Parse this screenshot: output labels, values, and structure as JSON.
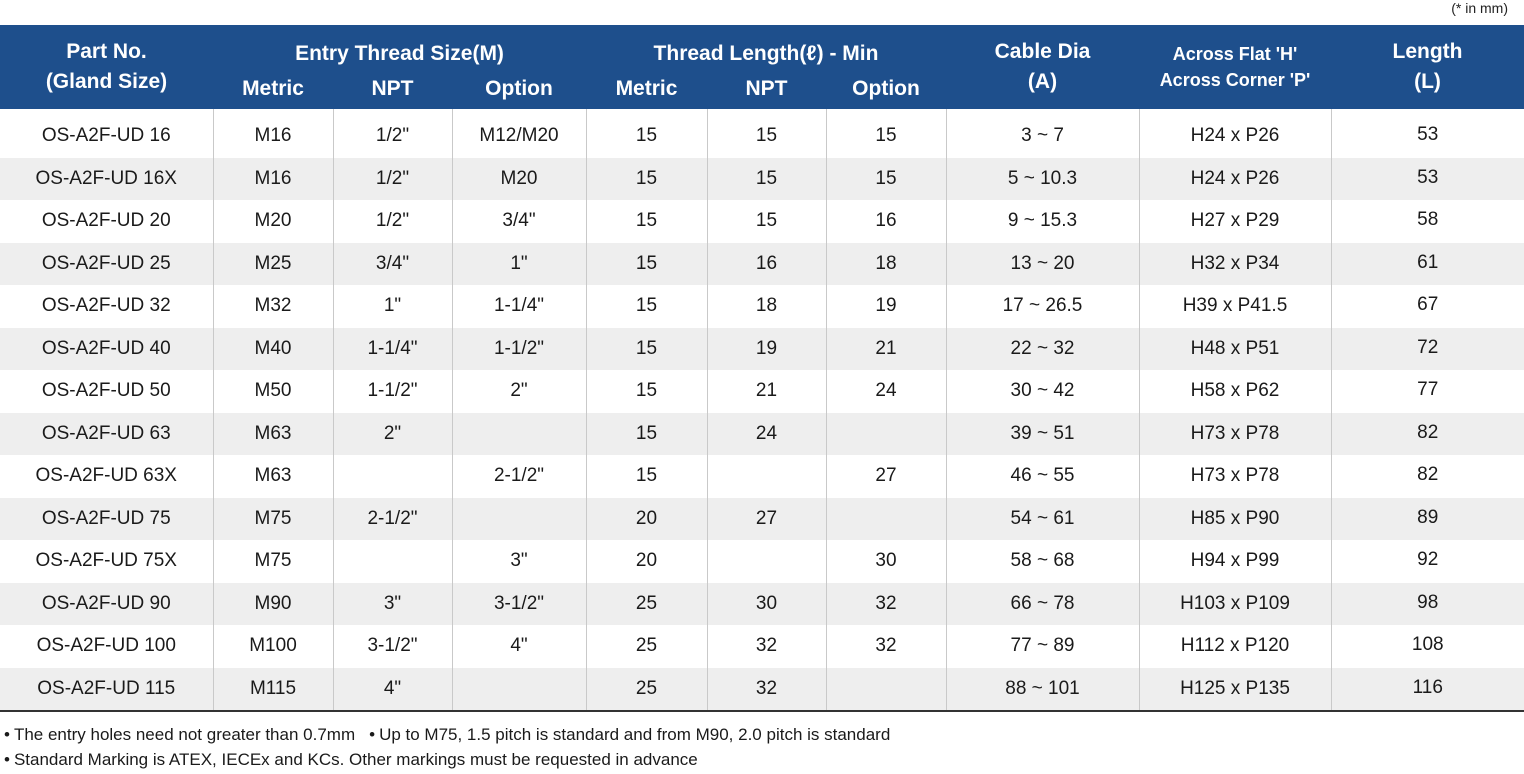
{
  "unit_note": "(* in mm)",
  "headers": {
    "part_no": [
      "Part No.",
      "(Gland Size)"
    ],
    "entry_thread": "Entry Thread Size(M)",
    "thread_length": "Thread Length(ℓ) - Min",
    "cable_dia": [
      "Cable Dia",
      "(A)"
    ],
    "across": [
      "Across Flat 'H'",
      "Across Corner 'P'"
    ],
    "length": [
      "Length",
      "(L)"
    ],
    "sub": [
      "Metric",
      "NPT",
      "Option",
      "Metric",
      "NPT",
      "Option"
    ]
  },
  "rows": [
    [
      "OS-A2F-UD 16",
      "M16",
      "1/2\"",
      "M12/M20",
      "15",
      "15",
      "15",
      "3 ~ 7",
      "H24 x P26",
      "53"
    ],
    [
      "OS-A2F-UD 16X",
      "M16",
      "1/2\"",
      "M20",
      "15",
      "15",
      "15",
      "5 ~ 10.3",
      "H24 x P26",
      "53"
    ],
    [
      "OS-A2F-UD 20",
      "M20",
      "1/2\"",
      "3/4\"",
      "15",
      "15",
      "16",
      "9 ~ 15.3",
      "H27 x P29",
      "58"
    ],
    [
      "OS-A2F-UD 25",
      "M25",
      "3/4\"",
      "1\"",
      "15",
      "16",
      "18",
      "13 ~ 20",
      "H32 x P34",
      "61"
    ],
    [
      "OS-A2F-UD 32",
      "M32",
      "1\"",
      "1-1/4\"",
      "15",
      "18",
      "19",
      "17 ~ 26.5",
      "H39 x P41.5",
      "67"
    ],
    [
      "OS-A2F-UD 40",
      "M40",
      "1-1/4\"",
      "1-1/2\"",
      "15",
      "19",
      "21",
      "22 ~ 32",
      "H48 x P51",
      "72"
    ],
    [
      "OS-A2F-UD 50",
      "M50",
      "1-1/2\"",
      "2\"",
      "15",
      "21",
      "24",
      "30 ~ 42",
      "H58 x P62",
      "77"
    ],
    [
      "OS-A2F-UD 63",
      "M63",
      "2\"",
      "",
      "15",
      "24",
      "",
      "39 ~ 51",
      "H73 x P78",
      "82"
    ],
    [
      "OS-A2F-UD 63X",
      "M63",
      "",
      "2-1/2\"",
      "15",
      "",
      "27",
      "46 ~ 55",
      "H73 x P78",
      "82"
    ],
    [
      "OS-A2F-UD 75",
      "M75",
      "2-1/2\"",
      "",
      "20",
      "27",
      "",
      "54 ~ 61",
      "H85 x P90",
      "89"
    ],
    [
      "OS-A2F-UD 75X",
      "M75",
      "",
      "3\"",
      "20",
      "",
      "30",
      "58 ~ 68",
      "H94 x P99",
      "92"
    ],
    [
      "OS-A2F-UD 90",
      "M90",
      "3\"",
      "3-1/2\"",
      "25",
      "30",
      "32",
      "66 ~ 78",
      "H103 x P109",
      "98"
    ],
    [
      "OS-A2F-UD 100",
      "M100",
      "3-1/2\"",
      "4\"",
      "25",
      "32",
      "32",
      "77 ~ 89",
      "H112 x P120",
      "108"
    ],
    [
      "OS-A2F-UD 115",
      "M115",
      "4\"",
      "",
      "25",
      "32",
      "",
      "88 ~ 101",
      "H125 x P135",
      "116"
    ]
  ],
  "notes": {
    "line1_a": "The entry holes need not greater than 0.7mm",
    "line1_b": "Up to M75, 1.5 pitch is standard and from M90, 2.0 pitch is standard",
    "line2": "Standard Marking is ATEX, IECEx and KCs. Other markings must be requested in advance",
    "bullet": "•"
  },
  "colors": {
    "header_bg": "#1e4f8c",
    "row_alt": "#eeeeee"
  }
}
